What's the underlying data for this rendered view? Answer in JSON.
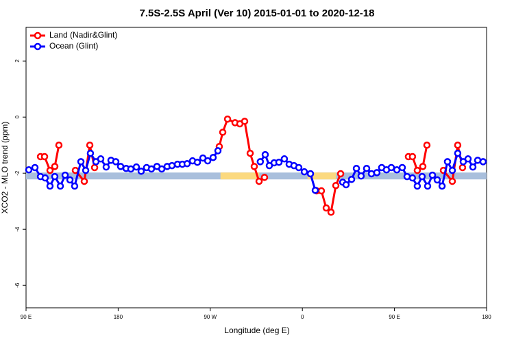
{
  "chart_data": {
    "type": "line",
    "title": "7.5S-2.5S April (Ver 10)   2015-01-01 to 2020-12-18",
    "x_label": "Longitude (deg E)",
    "y_label": "XCO2 - MLO trend (ppm)",
    "xlim": [
      90,
      540
    ],
    "ylim": [
      -6.8,
      3.2
    ],
    "xticks": [
      {
        "value": 90,
        "label": "90 E"
      },
      180,
      {
        "value": 270,
        "label": "90 W"
      },
      {
        "value": 360,
        "label": "0"
      },
      {
        "value": 450,
        "label": "90 E"
      },
      {
        "value": 540,
        "label": "180"
      }
    ],
    "yticks": [
      -6,
      -4,
      -2,
      0,
      2
    ],
    "legend": "top-left",
    "reference_band": {
      "value": -2.1,
      "color": "#a9bfdc",
      "highlights": [
        [
          280,
          318
        ],
        [
          365,
          393
        ]
      ],
      "highlight_color": "#fbd97f"
    },
    "series": [
      {
        "name": "Land (Nadir&Glint)",
        "color": "#ff0000",
        "x": [
          104.1,
          108.1,
          113.4,
          118.1,
          122.1,
          null,
          138.2,
          146.9,
          152.3,
          157.0,
          null,
          278.8,
          282.2,
          286.9,
          294.2,
          298.9,
          303.6,
          309.0,
          313.0,
          317.7,
          323.0,
          null,
          373.9,
          378.6,
          383.3,
          388.0,
          392.7,
          397.4,
          null,
          463.6,
          467.6,
          472.3,
          477.7,
          481.7,
          null,
          497.8,
          506.5,
          511.8,
          516.5
        ],
        "values": [
          -1.41,
          -1.41,
          -1.9,
          -1.76,
          -1.0,
          null,
          -1.9,
          -2.29,
          -1.0,
          -1.8,
          null,
          -1.05,
          -0.54,
          -0.07,
          -0.2,
          -0.24,
          -0.15,
          -1.29,
          -1.76,
          -2.29,
          -2.15,
          null,
          -2.63,
          -2.63,
          -3.24,
          -3.39,
          -2.44,
          -2.02,
          null,
          -1.41,
          -1.41,
          -1.9,
          -1.76,
          -1.0,
          null,
          -1.9,
          -2.29,
          -1.0,
          -1.8
        ]
      },
      {
        "name": "Ocean (Glint)",
        "color": "#0000ff",
        "x": [
          92.7,
          98.7,
          104.1,
          108.7,
          113.4,
          118.1,
          123.5,
          128.2,
          132.9,
          137.5,
          143.6,
          148.3,
          152.9,
          158.3,
          163.0,
          168.3,
          173.0,
          177.7,
          182.4,
          187.8,
          192.4,
          197.8,
          202.5,
          207.8,
          212.5,
          217.9,
          222.6,
          227.9,
          232.6,
          238.0,
          242.7,
          247.4,
          252.7,
          257.4,
          262.8,
          267.5,
          272.8,
          277.5,
          null,
          318.9,
          323.7,
          327.7,
          332.4,
          337.1,
          342.4,
          347.1,
          351.8,
          356.5,
          361.9,
          367.9,
          372.6,
          null,
          399.4,
          402.7,
          408.1,
          412.8,
          417.4,
          422.8,
          427.5,
          432.8,
          437.5,
          442.2,
          446.9,
          452.3,
          457.6,
          462.3,
          467.6,
          472.3,
          477.0,
          482.4,
          487.1,
          491.8,
          496.5,
          501.8,
          506.5,
          511.8,
          517.2,
          521.9,
          526.6,
          531.3,
          536.6
        ],
        "values": [
          -1.88,
          -1.8,
          -2.12,
          -2.17,
          -2.46,
          -2.12,
          -2.46,
          -2.07,
          -2.24,
          -2.46,
          -1.59,
          -1.9,
          -1.29,
          -1.59,
          -1.49,
          -1.78,
          -1.54,
          -1.59,
          -1.76,
          -1.83,
          -1.85,
          -1.78,
          -1.93,
          -1.8,
          -1.85,
          -1.76,
          -1.85,
          -1.76,
          -1.73,
          -1.68,
          -1.68,
          -1.66,
          -1.56,
          -1.61,
          -1.46,
          -1.56,
          -1.44,
          -1.2,
          null,
          -1.59,
          -1.34,
          -1.73,
          -1.63,
          -1.61,
          -1.49,
          -1.68,
          -1.73,
          -1.8,
          -1.95,
          -2.02,
          -2.61,
          null,
          -2.32,
          -2.41,
          -2.22,
          -1.83,
          -2.1,
          -1.83,
          -2.02,
          -1.98,
          -1.8,
          -1.88,
          -1.8,
          -1.88,
          -1.8,
          -2.12,
          -2.17,
          -2.46,
          -2.12,
          -2.46,
          -2.07,
          -2.24,
          -2.46,
          -1.59,
          -1.9,
          -1.29,
          -1.59,
          -1.49,
          -1.78,
          -1.54,
          -1.59
        ]
      }
    ]
  }
}
